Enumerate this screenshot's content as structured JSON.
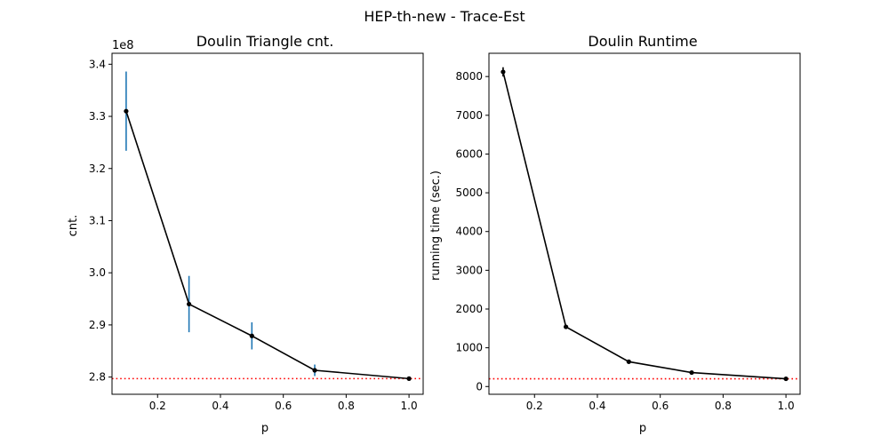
{
  "figure": {
    "suptitle": "HEP-th-new - Trace-Est"
  },
  "chart_data": [
    {
      "type": "line",
      "title": "Doulin Triangle cnt.",
      "xlabel": "p",
      "ylabel": "cnt.",
      "y_multiplier_label": "1e8",
      "xlim": [
        0.055,
        1.045
      ],
      "ylim": [
        2.767,
        3.421
      ],
      "xticks": [
        0.2,
        0.4,
        0.6,
        0.8,
        1.0
      ],
      "xtick_labels": [
        "0.2",
        "0.4",
        "0.6",
        "0.8",
        "1.0"
      ],
      "yticks": [
        2.8,
        2.9,
        3.0,
        3.1,
        3.2,
        3.3,
        3.4
      ],
      "ytick_labels": [
        "2.8",
        "2.9",
        "3.0",
        "3.1",
        "3.2",
        "3.3",
        "3.4"
      ],
      "grid": false,
      "series": [
        {
          "x": [
            0.1,
            0.3,
            0.5,
            0.7,
            1.0
          ],
          "y": [
            3.31,
            2.94,
            2.879,
            2.813,
            2.797
          ],
          "error": [
            0.076,
            0.054,
            0.026,
            0.011,
            0.0
          ],
          "color": "#000000",
          "error_color": "#1f77b4"
        }
      ],
      "reference_line": {
        "y": 2.797,
        "color": "#ff0000",
        "style": "dotted"
      }
    },
    {
      "type": "line",
      "title": "Doulin Runtime",
      "xlabel": "p",
      "ylabel": "running time (sec.)",
      "xlim": [
        0.055,
        1.045
      ],
      "ylim": [
        -200,
        8600
      ],
      "xticks": [
        0.2,
        0.4,
        0.6,
        0.8,
        1.0
      ],
      "xtick_labels": [
        "0.2",
        "0.4",
        "0.6",
        "0.8",
        "1.0"
      ],
      "yticks": [
        0,
        1000,
        2000,
        3000,
        4000,
        5000,
        6000,
        7000,
        8000
      ],
      "ytick_labels": [
        "0",
        "1000",
        "2000",
        "3000",
        "4000",
        "5000",
        "6000",
        "7000",
        "8000"
      ],
      "grid": false,
      "series": [
        {
          "x": [
            0.1,
            0.3,
            0.5,
            0.7,
            1.0
          ],
          "y": [
            8120,
            1540,
            640,
            360,
            200
          ],
          "error": [
            120,
            20,
            15,
            10,
            0
          ],
          "color": "#000000",
          "error_color": "#000000"
        }
      ],
      "reference_line": {
        "y": 200,
        "color": "#ff0000",
        "style": "dotted"
      }
    }
  ]
}
